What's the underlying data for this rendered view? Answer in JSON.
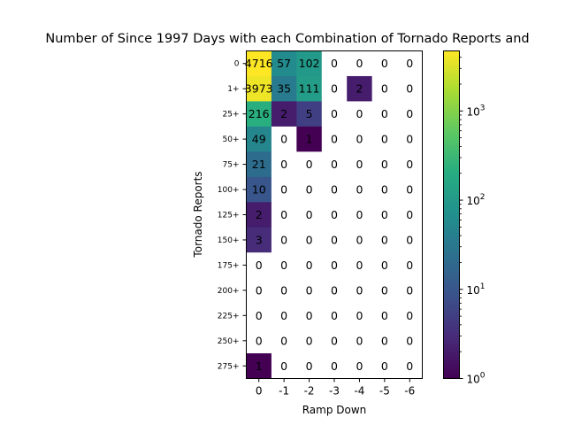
{
  "chart_data": {
    "type": "heatmap",
    "title": "Number of Since 1997 Days with each Combination of Tornado Reports and",
    "xlabel": "Ramp Down",
    "ylabel": "Tornado Reports",
    "x_categories": [
      "0",
      "-1",
      "-2",
      "-3",
      "-4",
      "-5",
      "-6"
    ],
    "y_categories": [
      "0",
      "1+",
      "25+",
      "50+",
      "75+",
      "100+",
      "125+",
      "150+",
      "175+",
      "200+",
      "225+",
      "250+",
      "275+"
    ],
    "values": [
      [
        4716,
        57,
        102,
        0,
        0,
        0,
        0
      ],
      [
        3973,
        35,
        111,
        0,
        2,
        0,
        0
      ],
      [
        216,
        2,
        5,
        0,
        0,
        0,
        0
      ],
      [
        49,
        0,
        1,
        0,
        0,
        0,
        0
      ],
      [
        21,
        0,
        0,
        0,
        0,
        0,
        0
      ],
      [
        10,
        0,
        0,
        0,
        0,
        0,
        0
      ],
      [
        2,
        0,
        0,
        0,
        0,
        0,
        0
      ],
      [
        3,
        0,
        0,
        0,
        0,
        0,
        0
      ],
      [
        0,
        0,
        0,
        0,
        0,
        0,
        0
      ],
      [
        0,
        0,
        0,
        0,
        0,
        0,
        0
      ],
      [
        0,
        0,
        0,
        0,
        0,
        0,
        0
      ],
      [
        0,
        0,
        0,
        0,
        0,
        0,
        0
      ],
      [
        1,
        0,
        0,
        0,
        0,
        0,
        0
      ]
    ],
    "color_scale": "log",
    "colormap": "viridis",
    "zero_color": "#ffffff",
    "colorbar": {
      "range": [
        1,
        4716
      ],
      "tick_values": [
        1,
        10,
        100,
        1000
      ],
      "tick_bases": [
        "10",
        "10",
        "10",
        "10"
      ],
      "tick_exponents": [
        "0",
        "1",
        "2",
        "3"
      ]
    },
    "grid": false
  }
}
